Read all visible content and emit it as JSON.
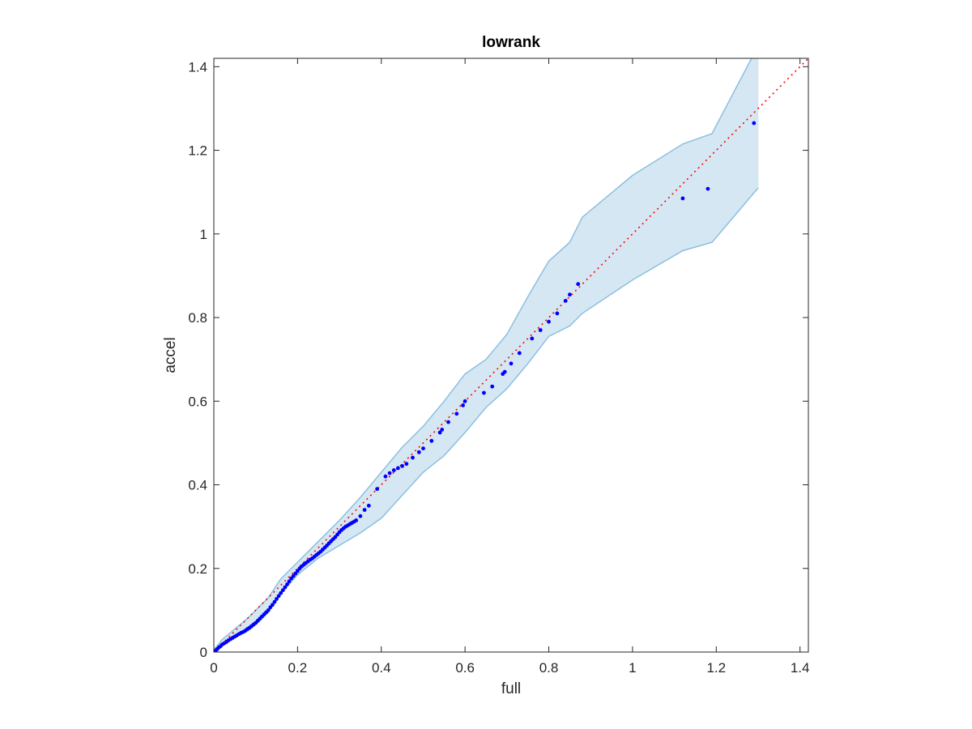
{
  "chart_data": {
    "type": "scatter",
    "title": "lowrank",
    "xlabel": "full",
    "ylabel": "accel",
    "xlim": [
      0,
      1.42
    ],
    "ylim": [
      0,
      1.42
    ],
    "x_ticks": [
      0,
      0.2,
      0.4,
      0.6,
      0.8,
      1,
      1.2,
      1.4
    ],
    "y_ticks": [
      0,
      0.2,
      0.4,
      0.6,
      0.8,
      1,
      1.2,
      1.4
    ],
    "x_tick_labels": [
      "0",
      "0.2",
      "0.4",
      "0.6",
      "0.8",
      "1",
      "1.2",
      "1.4"
    ],
    "y_tick_labels": [
      "0",
      "0.2",
      "0.4",
      "0.6",
      "0.8",
      "1",
      "1.2",
      "1.4"
    ],
    "grid": false,
    "colors": {
      "points": "#0000ff",
      "reference_line": "#ff0000",
      "band_fill": "#d5e7f3",
      "band_edge": "#8cbfe0",
      "axes": "#262626"
    },
    "reference_line": {
      "x": [
        0,
        1.42
      ],
      "y": [
        0,
        1.42
      ],
      "style": "dotted"
    },
    "band": {
      "x": [
        0,
        0.02,
        0.05,
        0.08,
        0.1,
        0.13,
        0.16,
        0.2,
        0.25,
        0.3,
        0.35,
        0.4,
        0.45,
        0.5,
        0.55,
        0.6,
        0.65,
        0.7,
        0.75,
        0.8,
        0.85,
        0.88,
        1.0,
        1.12,
        1.19,
        1.3
      ],
      "upper": [
        0.005,
        0.03,
        0.055,
        0.08,
        0.1,
        0.13,
        0.175,
        0.215,
        0.265,
        0.315,
        0.37,
        0.43,
        0.49,
        0.54,
        0.6,
        0.665,
        0.7,
        0.76,
        0.85,
        0.935,
        0.98,
        1.04,
        1.14,
        1.215,
        1.24,
        1.45
      ],
      "lower": [
        0.0,
        0.015,
        0.035,
        0.05,
        0.065,
        0.095,
        0.14,
        0.185,
        0.225,
        0.255,
        0.285,
        0.32,
        0.375,
        0.43,
        0.47,
        0.525,
        0.585,
        0.63,
        0.69,
        0.755,
        0.78,
        0.81,
        0.89,
        0.96,
        0.98,
        1.11
      ]
    },
    "series": [
      {
        "x": [
          0.002,
          0.005,
          0.008,
          0.012,
          0.016,
          0.02,
          0.025,
          0.03,
          0.035,
          0.04,
          0.045,
          0.05,
          0.055,
          0.06,
          0.065,
          0.07,
          0.075,
          0.08,
          0.085,
          0.09,
          0.095,
          0.1,
          0.105,
          0.11,
          0.115,
          0.12,
          0.125,
          0.13,
          0.135,
          0.14,
          0.145,
          0.15,
          0.155,
          0.16,
          0.165,
          0.17,
          0.175,
          0.18,
          0.185,
          0.19,
          0.195,
          0.2,
          0.205,
          0.21,
          0.215,
          0.22,
          0.225,
          0.23,
          0.235,
          0.24,
          0.245,
          0.25,
          0.255,
          0.26,
          0.265,
          0.27,
          0.275,
          0.28,
          0.285,
          0.29,
          0.295,
          0.3,
          0.305,
          0.31,
          0.315,
          0.32,
          0.325,
          0.33,
          0.335,
          0.34,
          0.35,
          0.36,
          0.37,
          0.39,
          0.41,
          0.42,
          0.43,
          0.44,
          0.45,
          0.46,
          0.475,
          0.49,
          0.5,
          0.52,
          0.54,
          0.545,
          0.56,
          0.58,
          0.595,
          0.6,
          0.645,
          0.665,
          0.69,
          0.695,
          0.71,
          0.73,
          0.76,
          0.78,
          0.8,
          0.82,
          0.84,
          0.85,
          0.87,
          1.12,
          1.18,
          1.29
        ],
        "y": [
          0.002,
          0.004,
          0.007,
          0.011,
          0.014,
          0.018,
          0.021,
          0.024,
          0.028,
          0.031,
          0.034,
          0.037,
          0.04,
          0.043,
          0.046,
          0.048,
          0.051,
          0.055,
          0.058,
          0.062,
          0.066,
          0.07,
          0.075,
          0.08,
          0.085,
          0.09,
          0.095,
          0.1,
          0.107,
          0.113,
          0.12,
          0.127,
          0.134,
          0.141,
          0.148,
          0.155,
          0.162,
          0.169,
          0.176,
          0.182,
          0.188,
          0.194,
          0.2,
          0.205,
          0.209,
          0.213,
          0.217,
          0.221,
          0.224,
          0.228,
          0.232,
          0.236,
          0.24,
          0.245,
          0.25,
          0.255,
          0.26,
          0.265,
          0.27,
          0.275,
          0.281,
          0.287,
          0.292,
          0.296,
          0.3,
          0.303,
          0.306,
          0.309,
          0.312,
          0.315,
          0.325,
          0.34,
          0.35,
          0.39,
          0.42,
          0.428,
          0.435,
          0.44,
          0.445,
          0.45,
          0.465,
          0.478,
          0.487,
          0.505,
          0.525,
          0.532,
          0.55,
          0.57,
          0.59,
          0.6,
          0.62,
          0.635,
          0.665,
          0.67,
          0.69,
          0.715,
          0.75,
          0.77,
          0.79,
          0.81,
          0.84,
          0.855,
          0.88,
          1.085,
          1.108,
          1.265
        ]
      }
    ]
  }
}
